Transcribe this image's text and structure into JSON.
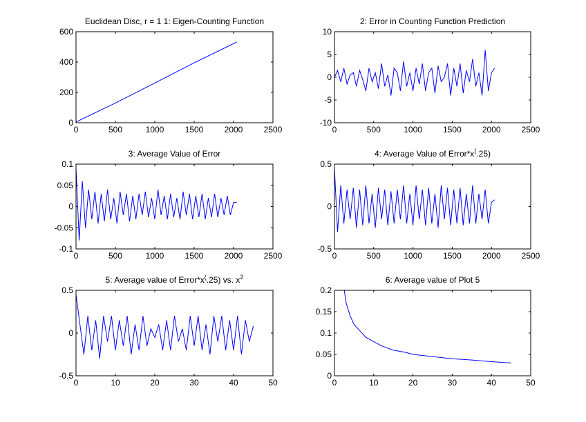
{
  "chart_data": [
    {
      "type": "line",
      "title": [
        "Euclidean Disc, r = 1 1: Eigen-Counting Function"
      ],
      "color": "#0000ff",
      "x": [
        0,
        500,
        1000,
        1500,
        2040
      ],
      "values": [
        5,
        130,
        262,
        395,
        532
      ],
      "xlim": [
        0,
        2500
      ],
      "xticks": [
        0,
        500,
        1000,
        1500,
        2000,
        2500
      ],
      "ylim": [
        0,
        600
      ],
      "yticks": [
        0,
        200,
        400,
        600
      ]
    },
    {
      "type": "line",
      "title": [
        "2: Error in Counting Function Prediction"
      ],
      "color": "#0000ff",
      "x": [
        0,
        40,
        80,
        120,
        160,
        200,
        240,
        280,
        320,
        360,
        400,
        440,
        480,
        520,
        560,
        600,
        640,
        680,
        720,
        760,
        800,
        840,
        880,
        920,
        960,
        1000,
        1040,
        1080,
        1120,
        1160,
        1200,
        1240,
        1280,
        1320,
        1360,
        1400,
        1440,
        1480,
        1520,
        1560,
        1600,
        1640,
        1680,
        1720,
        1760,
        1800,
        1840,
        1880,
        1920,
        1960,
        2000,
        2040
      ],
      "values": [
        0,
        1.5,
        -1,
        2,
        -1.5,
        0.5,
        1,
        -2,
        1.5,
        -0.5,
        -3,
        2,
        -1,
        1,
        -2.5,
        3,
        -2,
        0.5,
        -4,
        2,
        1,
        -3,
        3.5,
        -2,
        1,
        -3,
        2,
        -1.5,
        3,
        -3,
        1,
        2,
        -3.5,
        2.5,
        -1,
        0,
        3,
        -4,
        2,
        -2,
        3,
        -3.5,
        1.5,
        -1,
        4,
        -2,
        1,
        -4,
        6,
        -3,
        1,
        2
      ],
      "xlim": [
        0,
        2500
      ],
      "xticks": [
        0,
        500,
        1000,
        1500,
        2000,
        2500
      ],
      "ylim": [
        -10,
        10
      ],
      "yticks": [
        -10,
        -5,
        0,
        5,
        10
      ]
    },
    {
      "type": "line",
      "title": [
        "3: Average Value of Error"
      ],
      "color": "#0000ff",
      "x": [
        0,
        40,
        80,
        120,
        160,
        200,
        240,
        280,
        320,
        360,
        400,
        440,
        480,
        520,
        560,
        600,
        640,
        680,
        720,
        760,
        800,
        840,
        880,
        920,
        960,
        1000,
        1040,
        1080,
        1120,
        1160,
        1200,
        1240,
        1280,
        1320,
        1360,
        1400,
        1440,
        1480,
        1520,
        1560,
        1600,
        1640,
        1680,
        1720,
        1760,
        1800,
        1840,
        1880,
        1920,
        1960,
        2000,
        2040
      ],
      "values": [
        0.09,
        -0.08,
        0.06,
        -0.05,
        0.04,
        -0.03,
        0.035,
        -0.04,
        0.03,
        -0.035,
        0.04,
        -0.03,
        0.02,
        -0.04,
        0.035,
        -0.02,
        0.03,
        -0.035,
        0.025,
        -0.03,
        0.03,
        -0.02,
        0.035,
        -0.025,
        0.02,
        -0.03,
        0.04,
        -0.02,
        0.025,
        -0.03,
        0.03,
        -0.025,
        0.02,
        -0.03,
        0.035,
        -0.02,
        0.03,
        -0.03,
        0.025,
        -0.025,
        0.03,
        -0.03,
        0.02,
        -0.025,
        0.03,
        -0.025,
        0.02,
        -0.02,
        0.025,
        -0.02,
        0.01,
        0.01
      ],
      "xlim": [
        0,
        2500
      ],
      "xticks": [
        0,
        500,
        1000,
        1500,
        2000,
        2500
      ],
      "ylim": [
        -0.1,
        0.1
      ],
      "yticks": [
        -0.1,
        -0.05,
        0,
        0.05,
        0.1
      ]
    },
    {
      "type": "line",
      "title": [
        "4: Average Value of Error*x",
        "(",
        ".25)"
      ],
      "color": "#0000ff",
      "x": [
        0,
        40,
        80,
        120,
        160,
        200,
        240,
        280,
        320,
        360,
        400,
        440,
        480,
        520,
        560,
        600,
        640,
        680,
        720,
        760,
        800,
        840,
        880,
        920,
        960,
        1000,
        1040,
        1080,
        1120,
        1160,
        1200,
        1240,
        1280,
        1320,
        1360,
        1400,
        1440,
        1480,
        1520,
        1560,
        1600,
        1640,
        1680,
        1720,
        1760,
        1800,
        1840,
        1880,
        1920,
        1960,
        2000,
        2040
      ],
      "values": [
        0.45,
        -0.3,
        0.25,
        -0.2,
        0.2,
        -0.15,
        0.22,
        -0.25,
        0.2,
        -0.22,
        0.25,
        -0.2,
        0.15,
        -0.25,
        0.22,
        -0.15,
        0.2,
        -0.22,
        0.18,
        -0.2,
        0.2,
        -0.15,
        0.25,
        -0.2,
        0.15,
        -0.22,
        0.25,
        -0.15,
        0.2,
        -0.22,
        0.22,
        -0.2,
        0.15,
        -0.25,
        0.25,
        -0.15,
        0.22,
        -0.22,
        0.2,
        -0.2,
        0.22,
        -0.22,
        0.15,
        -0.2,
        0.25,
        -0.2,
        0.15,
        -0.15,
        0.2,
        -0.2,
        0.05,
        0.08
      ],
      "xlim": [
        0,
        2500
      ],
      "xticks": [
        0,
        500,
        1000,
        1500,
        2000,
        2500
      ],
      "ylim": [
        -0.5,
        0.5
      ],
      "yticks": [
        -0.5,
        0,
        0.5
      ]
    },
    {
      "type": "line",
      "title": [
        "5: Average value of Error*x",
        "(",
        ".25) vs. x",
        "2"
      ],
      "color": "#0000ff",
      "x": [
        0,
        1,
        2,
        3,
        4,
        5,
        6,
        7,
        8,
        9,
        10,
        11,
        12,
        13,
        14,
        15,
        16,
        17,
        18,
        19,
        20,
        21,
        22,
        23,
        24,
        25,
        26,
        27,
        28,
        29,
        30,
        31,
        32,
        33,
        34,
        35,
        36,
        37,
        38,
        39,
        40,
        41,
        42,
        43,
        44,
        45
      ],
      "values": [
        0.45,
        0.1,
        -0.25,
        0.2,
        -0.2,
        0.15,
        -0.3,
        0.2,
        -0.1,
        0.2,
        -0.2,
        0.15,
        -0.15,
        0.2,
        -0.25,
        0.1,
        -0.2,
        0.2,
        -0.15,
        0.05,
        -0.05,
        0.1,
        -0.2,
        0.15,
        -0.2,
        0.2,
        -0.1,
        0.05,
        -0.2,
        0.2,
        -0.15,
        0.2,
        -0.2,
        0.1,
        -0.25,
        0.2,
        -0.1,
        0.2,
        -0.2,
        0.15,
        -0.2,
        0.2,
        -0.25,
        0.15,
        -0.1,
        0.08
      ],
      "xlim": [
        0,
        50
      ],
      "xticks": [
        0,
        10,
        20,
        30,
        40,
        50
      ],
      "ylim": [
        -0.5,
        0.5
      ],
      "yticks": [
        -0.5,
        0,
        0.5
      ]
    },
    {
      "type": "line",
      "title": [
        "6: Average value of Plot 5"
      ],
      "color": "#0000ff",
      "x": [
        2.5,
        3,
        4,
        5,
        6,
        8,
        10,
        12,
        15,
        18,
        20,
        25,
        30,
        35,
        40,
        45
      ],
      "values": [
        0.2,
        0.17,
        0.14,
        0.12,
        0.11,
        0.09,
        0.08,
        0.07,
        0.06,
        0.055,
        0.05,
        0.045,
        0.04,
        0.037,
        0.033,
        0.03
      ],
      "xlim": [
        0,
        50
      ],
      "xticks": [
        0,
        10,
        20,
        30,
        40,
        50
      ],
      "ylim": [
        0,
        0.2
      ],
      "yticks": [
        0,
        0.05,
        0.1,
        0.15,
        0.2
      ]
    }
  ]
}
